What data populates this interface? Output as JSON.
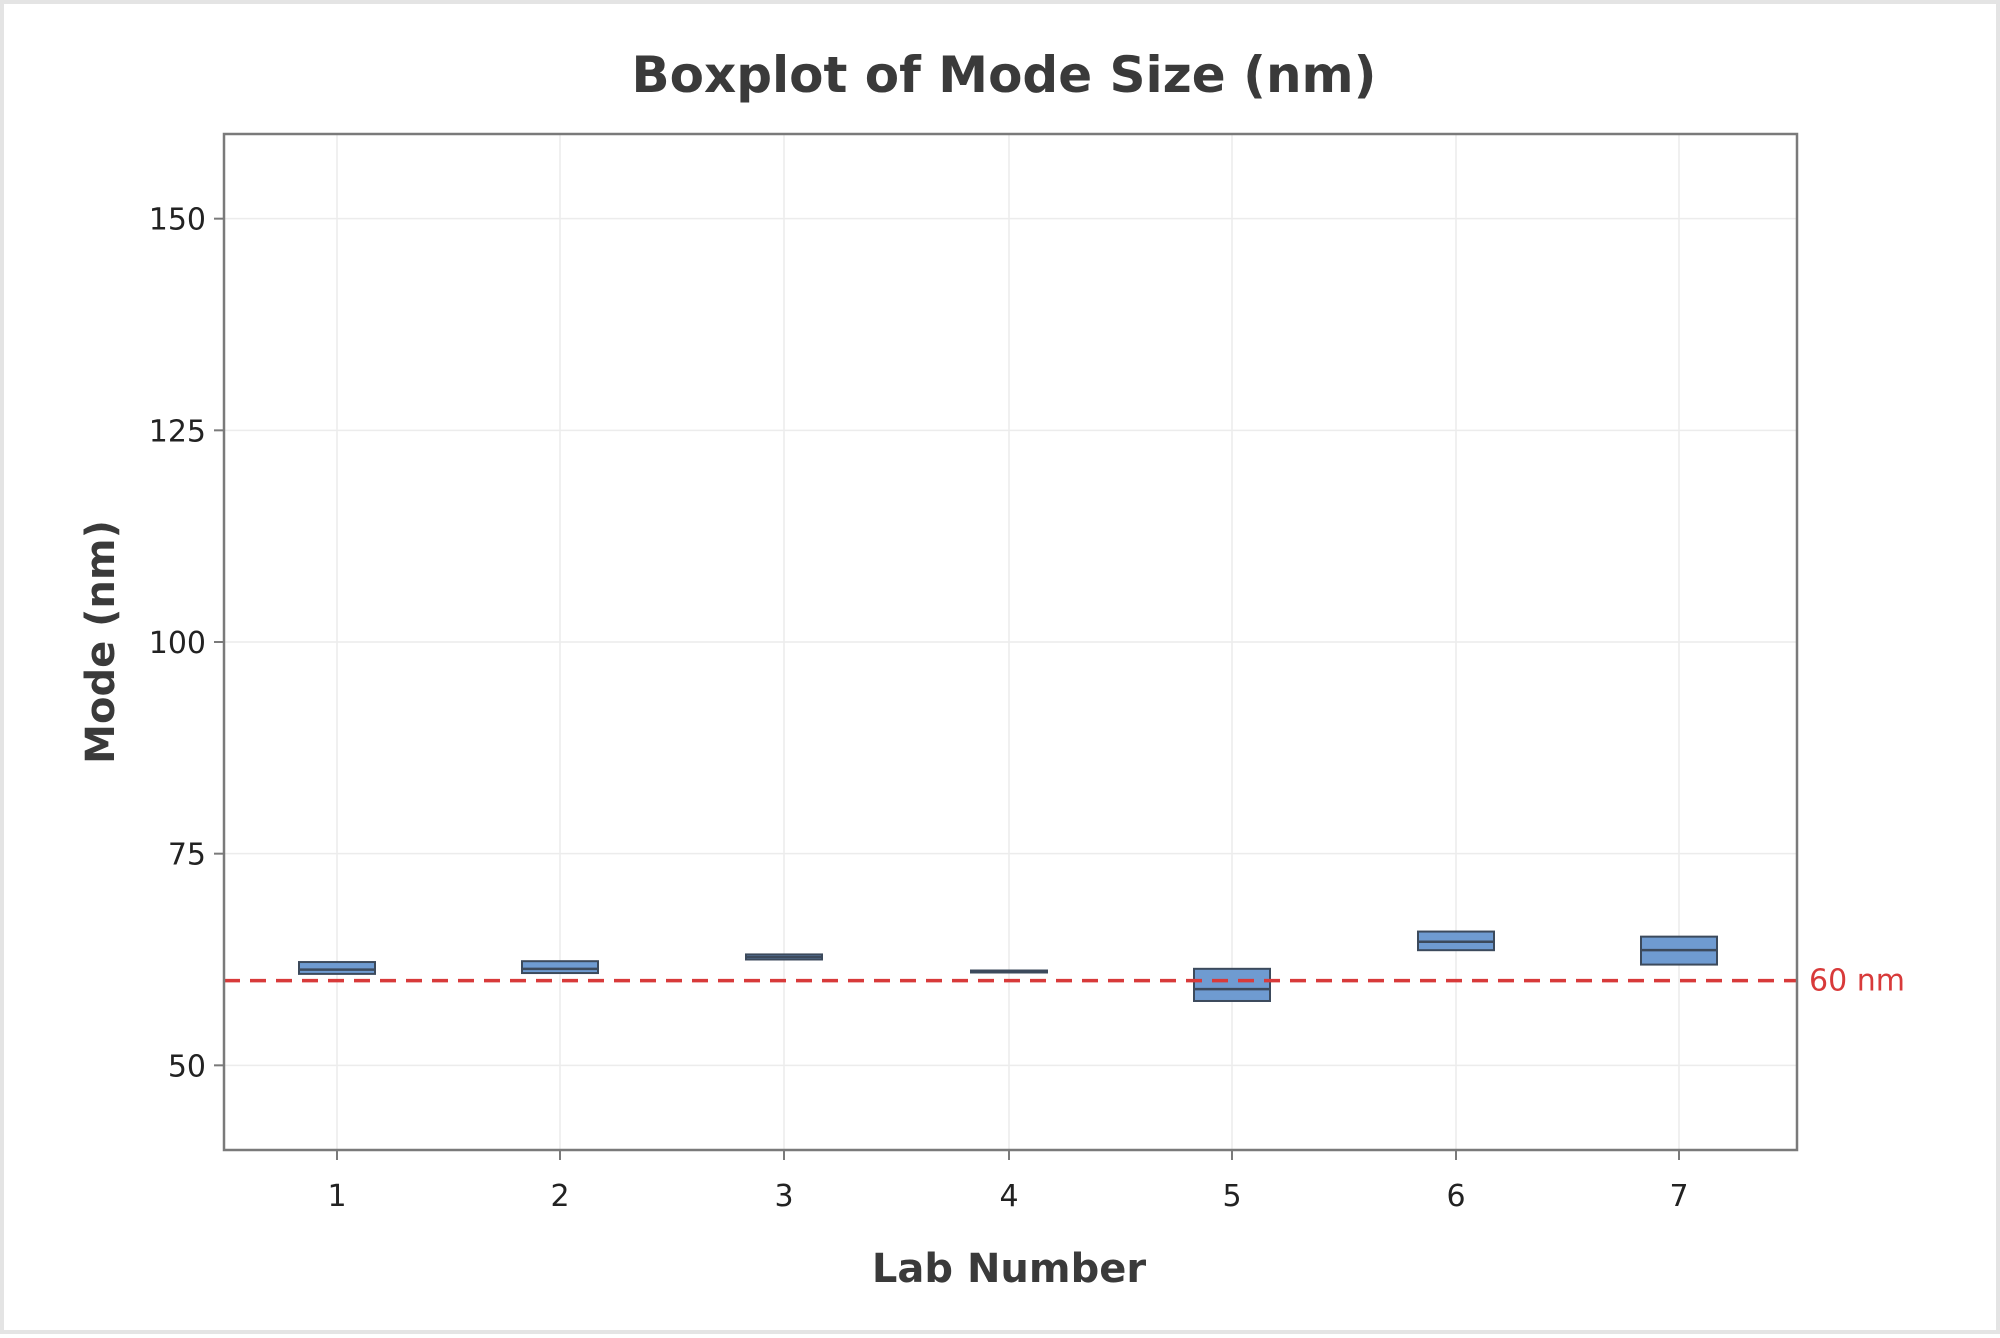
{
  "chart_data": {
    "type": "boxplot",
    "title": "Boxplot of Mode Size (nm)",
    "xlabel": "Lab Number",
    "ylabel": "Mode (nm)",
    "categories": [
      "1",
      "2",
      "3",
      "4",
      "5",
      "6",
      "7"
    ],
    "ylim": [
      40,
      160
    ],
    "yticks": [
      50,
      75,
      100,
      125,
      150
    ],
    "grid": true,
    "boxes": [
      {
        "category": "1",
        "q1": 60.8,
        "median": 61.3,
        "q3": 62.2
      },
      {
        "category": "2",
        "q1": 60.9,
        "median": 61.4,
        "q3": 62.3
      },
      {
        "category": "3",
        "q1": 62.5,
        "median": 62.8,
        "q3": 63.1
      },
      {
        "category": "4",
        "q1": 61.0,
        "median": 61.1,
        "q3": 61.2
      },
      {
        "category": "5",
        "q1": 57.6,
        "median": 59.0,
        "q3": 61.4
      },
      {
        "category": "6",
        "q1": 63.6,
        "median": 64.6,
        "q3": 65.8
      },
      {
        "category": "7",
        "q1": 61.9,
        "median": 63.6,
        "q3": 65.2
      }
    ],
    "reference_line": {
      "value": 60,
      "label": "60 nm",
      "color": "#d83a3a"
    },
    "box_color": "#6f9bd1",
    "box_edge_color": "#3c4a5c"
  }
}
